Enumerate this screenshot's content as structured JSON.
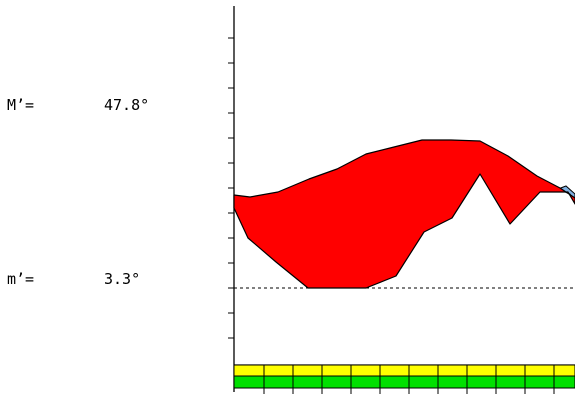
{
  "readouts": {
    "max_label": "M’=",
    "max_value": "47.8°",
    "min_label": "m’=",
    "min_value": "3.3°"
  },
  "colors": {
    "fill_main": "#ff0000",
    "fill_secondary": "#80b0e0",
    "band_top": "#ffff00",
    "band_bottom": "#00e000",
    "axis": "#000000"
  }
}
